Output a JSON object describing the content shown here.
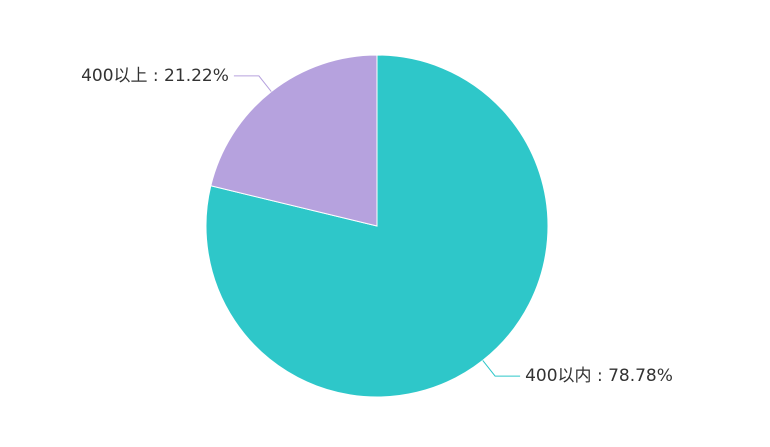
{
  "chart_data": {
    "type": "pie",
    "values": [
      78.78,
      21.22
    ],
    "value_labels": [
      "400以内 : 78.78%",
      "400以上 : 21.22%"
    ],
    "colors": [
      "#2ec7c9",
      "#b6a2de"
    ]
  }
}
